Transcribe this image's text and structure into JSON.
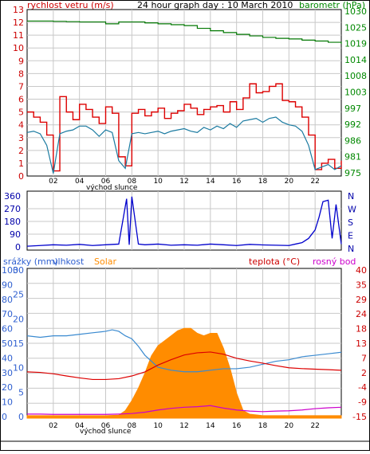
{
  "panel1": {
    "title": "24 hour graph day : 10 March 2010",
    "left_label": "rychlost vetru (m/s)",
    "right_label": "barometr (hPa)",
    "left_ticks": [
      "13",
      "12",
      "11",
      "10",
      "9",
      "8",
      "7",
      "6",
      "5",
      "4",
      "3",
      "2",
      "1",
      "0"
    ],
    "right_ticks": [
      "1030",
      "1025",
      "1019",
      "1014",
      "1008",
      "1003",
      "997",
      "992",
      "986",
      "981",
      "975"
    ],
    "x_ticks": [
      "02",
      "04",
      "06",
      "08",
      "10",
      "12",
      "14",
      "16",
      "18",
      "20",
      "22"
    ],
    "sunrise_label": "východ slunce"
  },
  "panel2": {
    "left_ticks": [
      "360",
      "270",
      "180",
      "90",
      "0"
    ],
    "right_ticks": [
      "N",
      "W",
      "S",
      "E",
      "N"
    ]
  },
  "panel3": {
    "label_precip": "srážky (mm)",
    "label_humidity": "vlhkost",
    "label_solar": "Solar",
    "label_temp": "teplota (°C)",
    "label_dew": "rosný bod",
    "left_ticks": [
      "100",
      "90",
      "80",
      "70",
      "60",
      "50",
      "40",
      "30",
      "20",
      "10",
      "0"
    ],
    "mid_ticks": [
      "30",
      "25",
      "20",
      "15",
      "10",
      "5",
      "0"
    ],
    "right_ticks": [
      "40",
      "35",
      "29",
      "24",
      "18",
      "13",
      "7",
      "2",
      "-4",
      "-9",
      "-15"
    ],
    "x_ticks": [
      "02",
      "04",
      "06",
      "08",
      "10",
      "12",
      "14",
      "16",
      "18",
      "20",
      "22"
    ],
    "sunrise_label": "východ slunce"
  },
  "colors": {
    "wind_gust": "#dd0000",
    "wind_avg": "#1a7aa0",
    "pressure": "#007700",
    "direction": "#0000cc",
    "humidity": "#3a8ad0",
    "solar": "#ff8c00",
    "temperature": "#dd0000",
    "dew_point": "#cc00cc",
    "left_axis_text": "#cc0000",
    "right_axis_text": "#008800",
    "panel3_left_text": "#3060d0",
    "panel3_right_text": "#cc0000"
  },
  "chart_data": [
    {
      "type": "line",
      "title": "24 hour graph day : 10 March 2010",
      "x_unit": "hour",
      "xlim": [
        0,
        24
      ],
      "ylabel": "rychlost vetru (m/s)",
      "ylim": [
        0,
        13
      ],
      "y2label": "barometr (hPa)",
      "y2lim": [
        975,
        1030
      ],
      "series": [
        {
          "name": "wind gust",
          "axis": "left",
          "x": [
            0,
            0.5,
            1,
            1.5,
            2,
            2.5,
            3,
            3.5,
            4,
            4.5,
            5,
            5.5,
            6,
            6.5,
            7,
            7.5,
            8,
            8.5,
            9,
            9.5,
            10,
            10.5,
            11,
            11.5,
            12,
            12.5,
            13,
            13.5,
            14,
            14.5,
            15,
            15.5,
            16,
            16.5,
            17,
            17.5,
            18,
            18.5,
            19,
            19.5,
            20,
            20.5,
            21,
            21.5,
            22,
            22.5,
            23,
            23.5,
            24
          ],
          "values": [
            5.0,
            4.6,
            4.2,
            3.2,
            0.4,
            6.2,
            5.0,
            4.4,
            5.6,
            5.2,
            4.6,
            4.1,
            5.4,
            4.9,
            1.5,
            0.8,
            4.9,
            5.2,
            4.7,
            5.0,
            5.3,
            4.5,
            4.9,
            5.1,
            5.6,
            5.3,
            4.8,
            5.2,
            5.4,
            5.5,
            5.0,
            5.8,
            5.2,
            6.1,
            7.2,
            6.5,
            6.6,
            7.0,
            7.2,
            5.9,
            5.8,
            5.4,
            4.6,
            3.2,
            0.5,
            1.0,
            1.3,
            0.6,
            1.2
          ]
        },
        {
          "name": "wind average",
          "axis": "left",
          "x": [
            0,
            0.5,
            1,
            1.5,
            2,
            2.5,
            3,
            3.5,
            4,
            4.5,
            5,
            5.5,
            6,
            6.5,
            7,
            7.5,
            8,
            8.5,
            9,
            9.5,
            10,
            10.5,
            11,
            11.5,
            12,
            12.5,
            13,
            13.5,
            14,
            14.5,
            15,
            15.5,
            16,
            16.5,
            17,
            17.5,
            18,
            18.5,
            19,
            19.5,
            20,
            20.5,
            21,
            21.5,
            22,
            22.5,
            23,
            23.5,
            24
          ],
          "values": [
            3.4,
            3.5,
            3.3,
            2.4,
            0.2,
            3.3,
            3.5,
            3.6,
            3.9,
            3.9,
            3.6,
            3.1,
            3.6,
            3.4,
            1.2,
            0.6,
            3.3,
            3.4,
            3.3,
            3.4,
            3.5,
            3.3,
            3.5,
            3.6,
            3.7,
            3.5,
            3.4,
            3.8,
            3.6,
            3.9,
            3.7,
            4.1,
            3.8,
            4.3,
            4.4,
            4.5,
            4.2,
            4.5,
            4.6,
            4.2,
            4.0,
            3.9,
            3.5,
            2.4,
            0.5,
            0.7,
            0.9,
            0.5,
            0.8
          ]
        },
        {
          "name": "pressure",
          "axis": "right",
          "x": [
            0,
            1,
            2,
            3,
            4,
            5,
            6,
            7,
            8,
            9,
            10,
            11,
            12,
            13,
            14,
            15,
            16,
            17,
            18,
            19,
            20,
            21,
            22,
            23,
            24
          ],
          "values": [
            1026.2,
            1026.2,
            1026.1,
            1026.0,
            1025.9,
            1025.9,
            1025.3,
            1025.9,
            1025.9,
            1025.6,
            1025.3,
            1025.0,
            1024.7,
            1023.8,
            1023.0,
            1022.4,
            1021.8,
            1021.3,
            1020.8,
            1020.5,
            1020.3,
            1019.9,
            1019.6,
            1019.2,
            1018.6
          ]
        }
      ]
    },
    {
      "type": "line",
      "x_unit": "hour",
      "xlim": [
        0,
        24
      ],
      "ylabel": "",
      "ylim": [
        0,
        360
      ],
      "series": [
        {
          "name": "wind direction",
          "x": [
            0,
            1,
            2,
            3,
            4,
            5,
            6,
            7,
            7.6,
            7.8,
            8,
            8.5,
            9,
            10,
            11,
            12,
            13,
            14,
            15,
            16,
            17,
            18,
            19,
            20,
            20.5,
            21,
            21.5,
            22,
            22.3,
            22.6,
            23,
            23.3,
            23.6,
            24
          ],
          "values": [
            5,
            10,
            15,
            12,
            18,
            10,
            15,
            20,
            340,
            15,
            355,
            20,
            15,
            20,
            12,
            15,
            12,
            20,
            15,
            10,
            18,
            14,
            12,
            10,
            20,
            30,
            60,
            120,
            210,
            320,
            330,
            60,
            300,
            20
          ]
        }
      ]
    },
    {
      "type": "area",
      "x_unit": "hour",
      "xlim": [
        0,
        24
      ],
      "ylabel": "vlhkost",
      "ylim": [
        0,
        100
      ],
      "y2label": "teplota (°C)",
      "y2lim": [
        -15,
        40
      ],
      "series": [
        {
          "name": "vlhkost",
          "axis": "left",
          "x": [
            0,
            1,
            2,
            3,
            4,
            5,
            6,
            6.5,
            7,
            7.5,
            8,
            8.5,
            9,
            10,
            11,
            12,
            13,
            14,
            15,
            16,
            17,
            18,
            19,
            20,
            21,
            22,
            23,
            24
          ],
          "values": [
            55,
            54,
            55,
            55,
            56,
            57,
            58,
            59,
            58,
            55,
            53,
            48,
            42,
            34,
            32,
            31,
            31,
            32,
            33,
            33,
            34,
            36,
            38,
            39,
            41,
            42,
            43,
            44
          ]
        },
        {
          "name": "Solar",
          "axis": "mid",
          "x": [
            0,
            6,
            7,
            7.5,
            8,
            8.5,
            9,
            9.5,
            10,
            10.5,
            11,
            11.5,
            12,
            12.5,
            13,
            13.5,
            14,
            14.5,
            15,
            15.5,
            16,
            16.5,
            17,
            18,
            24
          ],
          "values": [
            0.5,
            0.5,
            0.6,
            1.5,
            3.5,
            6.0,
            9.0,
            12.5,
            14.5,
            15.5,
            16.5,
            17.5,
            18.0,
            18.0,
            17.0,
            16.5,
            17.0,
            17.0,
            14.0,
            10.0,
            5.0,
            1.5,
            0.8,
            0.5,
            0.5
          ]
        },
        {
          "name": "teplota (°C)",
          "axis": "right",
          "x": [
            0,
            1,
            2,
            3,
            4,
            5,
            6,
            7,
            8,
            9,
            10,
            11,
            12,
            13,
            14,
            15,
            16,
            17,
            18,
            19,
            20,
            21,
            22,
            23,
            24
          ],
          "values": [
            2.0,
            1.8,
            1.3,
            0.5,
            -0.2,
            -0.8,
            -0.8,
            -0.5,
            0.5,
            2.0,
            4.5,
            6.5,
            8.2,
            9.0,
            9.3,
            8.5,
            7.0,
            6.0,
            5.2,
            4.3,
            3.5,
            3.2,
            3.0,
            2.8,
            2.6
          ]
        },
        {
          "name": "rosný bod",
          "axis": "right",
          "x": [
            0,
            1,
            2,
            3,
            4,
            5,
            6,
            7,
            8,
            9,
            10,
            11,
            12,
            13,
            14,
            15,
            16,
            17,
            18,
            19,
            20,
            21,
            22,
            23,
            24
          ],
          "values": [
            -13.5,
            -13.5,
            -13.6,
            -13.6,
            -13.6,
            -13.6,
            -13.6,
            -13.5,
            -13.3,
            -12.8,
            -12.0,
            -11.4,
            -11.0,
            -10.8,
            -10.4,
            -11.3,
            -12.0,
            -12.4,
            -12.6,
            -12.4,
            -12.3,
            -12.0,
            -11.5,
            -11.2,
            -11.0
          ]
        }
      ]
    }
  ]
}
